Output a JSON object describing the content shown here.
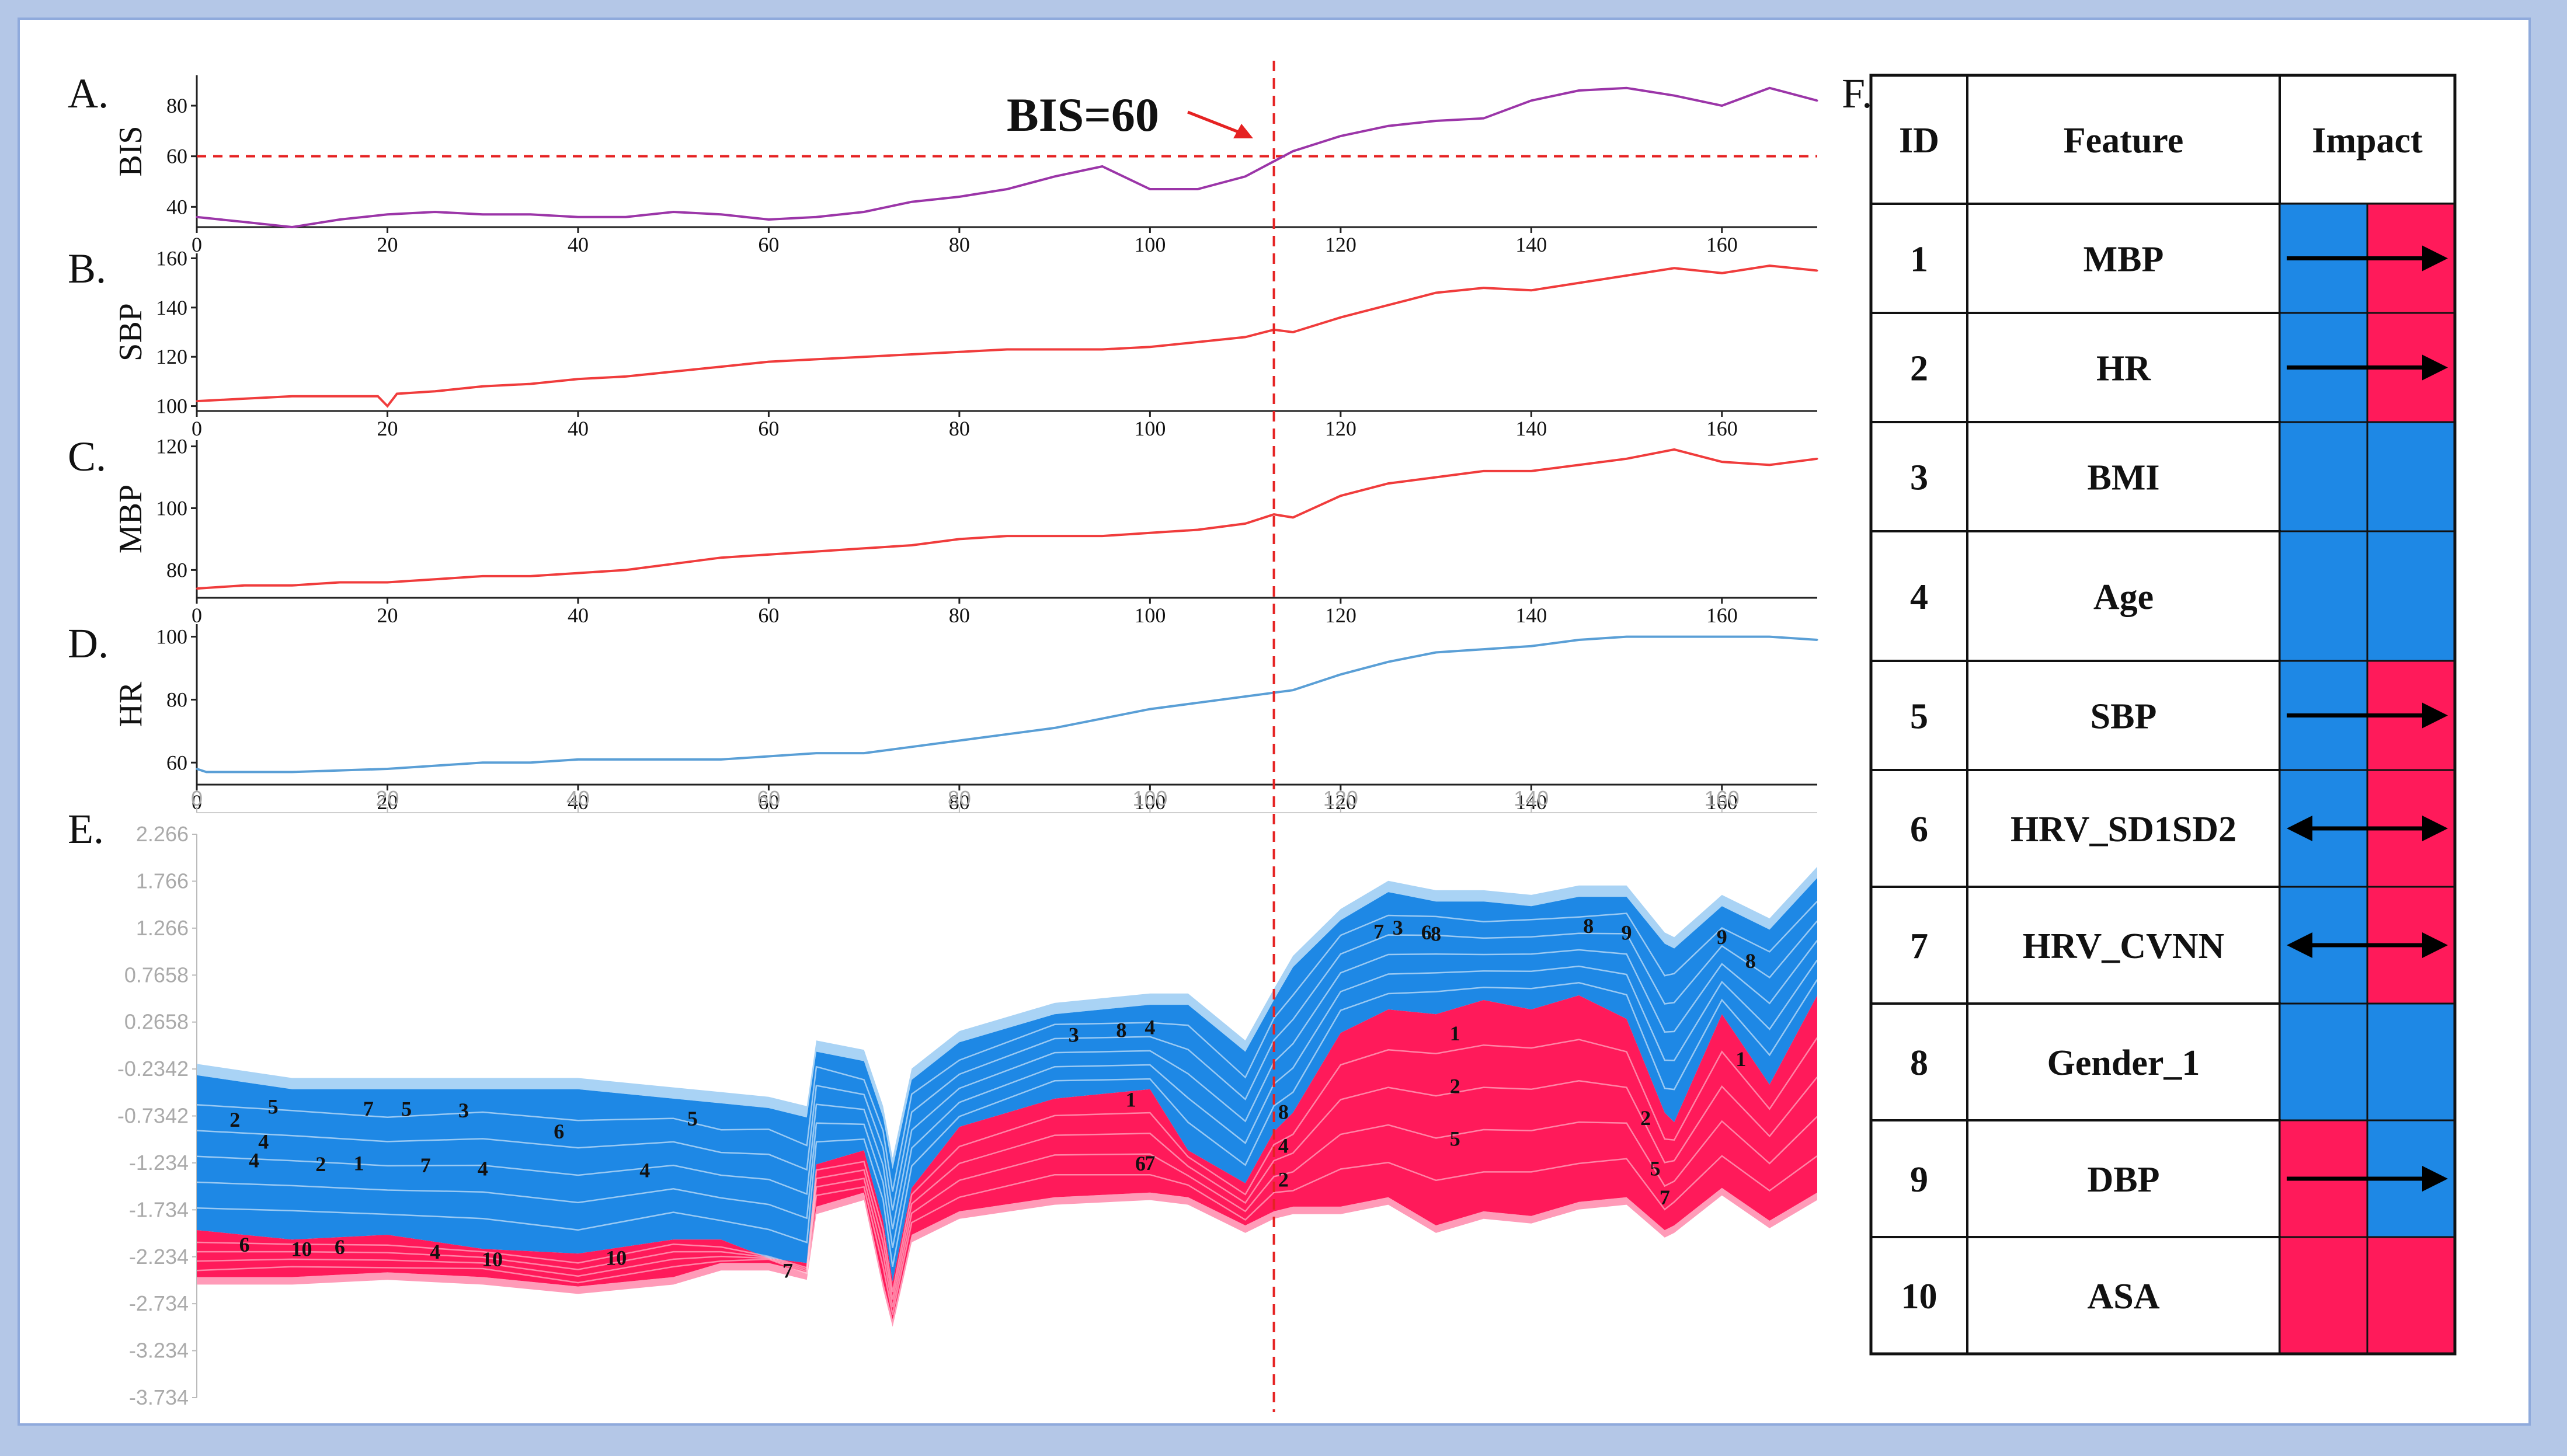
{
  "panel_letters": [
    "A.",
    "B.",
    "C.",
    "D.",
    "E.",
    "F."
  ],
  "annotation": {
    "text": "BIS=60",
    "threshold_x": 113
  },
  "colors": {
    "bis": "#9b35a8",
    "sbp": "#f03c3c",
    "mbp": "#f03c3c",
    "hr": "#5a9fd6",
    "neg": "#1e88e5",
    "pos": "#ff1a5a",
    "ref": "#e52222"
  },
  "chart_data": [
    {
      "type": "line",
      "panel": "A.",
      "ylabel": "BIS",
      "xlim": [
        0,
        170
      ],
      "ylim": [
        32,
        92
      ],
      "yticks": [
        "40",
        "60",
        "80"
      ],
      "xticks": [
        "0",
        "20",
        "40",
        "60",
        "80",
        "100",
        "120",
        "140",
        "160"
      ],
      "reference_line_y": 60,
      "x": [
        0,
        5,
        10,
        15,
        20,
        25,
        30,
        35,
        40,
        45,
        50,
        55,
        60,
        65,
        70,
        75,
        80,
        85,
        90,
        95,
        100,
        105,
        110,
        113,
        115,
        120,
        125,
        130,
        135,
        140,
        145,
        150,
        155,
        160,
        165,
        170
      ],
      "values": [
        36,
        34,
        32,
        35,
        37,
        38,
        37,
        37,
        36,
        36,
        38,
        37,
        35,
        36,
        38,
        42,
        44,
        47,
        52,
        56,
        47,
        47,
        52,
        58,
        62,
        68,
        72,
        74,
        75,
        82,
        86,
        87,
        84,
        80,
        87,
        82
      ]
    },
    {
      "type": "line",
      "panel": "B.",
      "ylabel": "SBP",
      "xlim": [
        0,
        170
      ],
      "ylim": [
        98,
        162
      ],
      "yticks": [
        "100",
        "120",
        "140",
        "160"
      ],
      "xticks": [
        "0",
        "20",
        "40",
        "60",
        "80",
        "100",
        "120",
        "140",
        "160"
      ],
      "x": [
        0,
        5,
        10,
        15,
        19,
        20,
        21,
        25,
        30,
        35,
        40,
        45,
        50,
        55,
        60,
        65,
        70,
        75,
        80,
        85,
        90,
        95,
        100,
        105,
        110,
        113,
        115,
        120,
        125,
        130,
        135,
        140,
        145,
        150,
        155,
        160,
        165,
        170
      ],
      "values": [
        102,
        103,
        104,
        104,
        104,
        100,
        105,
        106,
        108,
        109,
        111,
        112,
        114,
        116,
        118,
        119,
        120,
        121,
        122,
        123,
        123,
        123,
        124,
        126,
        128,
        131,
        130,
        136,
        141,
        146,
        148,
        147,
        150,
        153,
        156,
        154,
        157,
        155
      ]
    },
    {
      "type": "line",
      "panel": "C.",
      "ylabel": "MBP",
      "xlim": [
        0,
        170
      ],
      "ylim": [
        71,
        122
      ],
      "yticks": [
        "80",
        "100",
        "120"
      ],
      "xticks": [
        "0",
        "20",
        "40",
        "60",
        "80",
        "100",
        "120",
        "140",
        "160"
      ],
      "x": [
        0,
        5,
        10,
        15,
        20,
        25,
        30,
        35,
        40,
        45,
        50,
        55,
        60,
        65,
        70,
        75,
        80,
        85,
        90,
        95,
        100,
        105,
        110,
        113,
        115,
        120,
        125,
        130,
        135,
        140,
        145,
        150,
        155,
        160,
        165,
        170
      ],
      "values": [
        74,
        75,
        75,
        76,
        76,
        77,
        78,
        78,
        79,
        80,
        82,
        84,
        85,
        86,
        87,
        88,
        90,
        91,
        91,
        91,
        92,
        93,
        95,
        98,
        97,
        104,
        108,
        110,
        112,
        112,
        114,
        116,
        119,
        115,
        114,
        116
      ]
    },
    {
      "type": "line",
      "panel": "D.",
      "ylabel": "HR",
      "xlim": [
        0,
        170
      ],
      "ylim": [
        53,
        104
      ],
      "yticks": [
        "60",
        "80",
        "100"
      ],
      "xticks": [
        "0",
        "20",
        "40",
        "60",
        "80",
        "100",
        "120",
        "140",
        "160"
      ],
      "x": [
        0,
        1,
        5,
        10,
        20,
        25,
        30,
        35,
        40,
        45,
        50,
        55,
        60,
        65,
        70,
        75,
        80,
        85,
        90,
        95,
        100,
        105,
        110,
        115,
        120,
        125,
        130,
        135,
        140,
        145,
        150,
        160,
        165,
        170
      ],
      "values": [
        58,
        57,
        57,
        57,
        58,
        59,
        60,
        60,
        61,
        61,
        61,
        61,
        62,
        63,
        63,
        65,
        67,
        69,
        71,
        74,
        77,
        79,
        81,
        83,
        88,
        92,
        95,
        96,
        97,
        99,
        100,
        100,
        100,
        99
      ]
    },
    {
      "type": "area",
      "panel": "E.",
      "subtype": "stacked-stream",
      "yticks": [
        "2.266",
        "1.766",
        "1.266",
        "0.7658",
        "0.2658",
        "-0.2342",
        "-0.7342",
        "-1.234",
        "-1.734",
        "-2.234",
        "-2.734",
        "-3.234",
        "-3.734"
      ],
      "xticks": [
        "0",
        "20",
        "40",
        "60",
        "80",
        "100",
        "120",
        "140",
        "160"
      ],
      "x": [
        0,
        10,
        20,
        30,
        40,
        50,
        55,
        60,
        64,
        65,
        70,
        72,
        73,
        75,
        80,
        90,
        100,
        104,
        110,
        113,
        115,
        120,
        125,
        130,
        135,
        140,
        145,
        150,
        154,
        155,
        160,
        165,
        170
      ],
      "pos_bottom": [
        -2.45,
        -2.45,
        -2.4,
        -2.45,
        -2.55,
        -2.45,
        -2.3,
        -2.3,
        -2.4,
        -1.7,
        -1.55,
        -2.5,
        -2.9,
        -2.0,
        -1.75,
        -1.6,
        -1.55,
        -1.6,
        -1.9,
        -1.75,
        -1.7,
        -1.7,
        -1.6,
        -1.9,
        -1.75,
        -1.8,
        -1.65,
        -1.6,
        -1.95,
        -1.9,
        -1.5,
        -1.85,
        -1.55
      ],
      "boundary": [
        -1.95,
        -2.05,
        -2.0,
        -2.15,
        -2.2,
        -2.05,
        -2.05,
        -2.25,
        -2.3,
        -1.25,
        -1.1,
        -1.85,
        -2.5,
        -1.5,
        -0.85,
        -0.55,
        -0.45,
        -1.1,
        -1.45,
        -0.9,
        -0.7,
        0.15,
        0.4,
        0.35,
        0.5,
        0.4,
        0.55,
        0.3,
        -0.7,
        -0.8,
        0.35,
        -0.4,
        0.55
      ],
      "neg_top": [
        -0.3,
        -0.45,
        -0.45,
        -0.45,
        -0.45,
        -0.55,
        -0.6,
        -0.65,
        -0.75,
        -0.05,
        -0.15,
        -0.75,
        -1.3,
        -0.35,
        0.05,
        0.35,
        0.45,
        0.45,
        -0.05,
        0.5,
        0.85,
        1.35,
        1.65,
        1.55,
        1.55,
        1.5,
        1.6,
        1.6,
        1.1,
        1.05,
        1.5,
        1.25,
        1.8
      ],
      "boundary_labels": [
        "6",
        "4",
        "10",
        "9",
        "7",
        "8",
        "2",
        "5"
      ],
      "positive_labels": [
        "1",
        "2",
        "5",
        "6",
        "7"
      ],
      "negative_labels": [
        "1",
        "2",
        "3",
        "4",
        "5",
        "6",
        "7",
        "8",
        "9"
      ]
    }
  ],
  "table": {
    "headers": [
      "ID",
      "Feature",
      "Impact"
    ],
    "rows": [
      {
        "id": "1",
        "feature": "MBP",
        "left": "#1e88e5",
        "right": "#ff1a5a",
        "arrow": "right"
      },
      {
        "id": "2",
        "feature": "HR",
        "left": "#1e88e5",
        "right": "#ff1a5a",
        "arrow": "right"
      },
      {
        "id": "3",
        "feature": "BMI",
        "left": "#1e88e5",
        "right": "#1e88e5",
        "arrow": "none"
      },
      {
        "id": "4",
        "feature": "Age",
        "left": "#1e88e5",
        "right": "#1e88e5",
        "arrow": "none"
      },
      {
        "id": "5",
        "feature": "SBP",
        "left": "#1e88e5",
        "right": "#ff1a5a",
        "arrow": "right"
      },
      {
        "id": "6",
        "feature": "HRV_SD1SD2",
        "left": "#1e88e5",
        "right": "#ff1a5a",
        "arrow": "both"
      },
      {
        "id": "7",
        "feature": "HRV_CVNN",
        "left": "#1e88e5",
        "right": "#ff1a5a",
        "arrow": "both"
      },
      {
        "id": "8",
        "feature": "Gender_1",
        "left": "#1e88e5",
        "right": "#1e88e5",
        "arrow": "none"
      },
      {
        "id": "9",
        "feature": "DBP",
        "left": "#ff1a5a",
        "right": "#1e88e5",
        "arrow": "right"
      },
      {
        "id": "10",
        "feature": "ASA",
        "left": "#ff1a5a",
        "right": "#ff1a5a",
        "arrow": "none"
      }
    ]
  }
}
